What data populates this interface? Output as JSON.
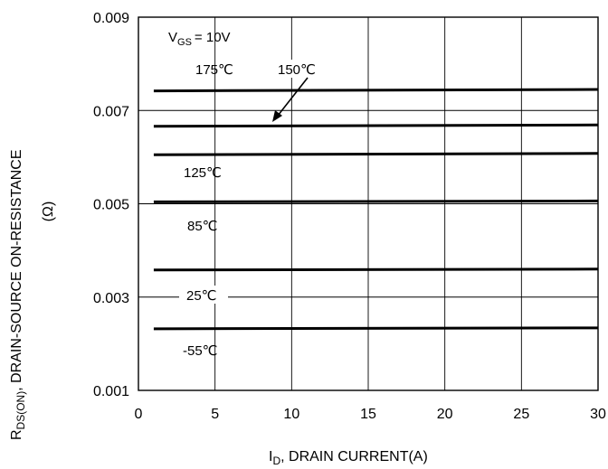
{
  "chart_data": {
    "type": "line",
    "ylabel": "R_DS(ON), DRAIN-SOURCE ON-RESISTANCE (Ω)",
    "ylabel_parts": {
      "r": "R",
      "sub": "DS(ON)",
      "rest": ",   DRAIN-SOURCE ON-RESISTANCE",
      "unit": "(Ω)"
    },
    "xlabel": "I_D, DRAIN CURRENT(A)",
    "xlabel_parts": {
      "i": "I",
      "sub": "D",
      "rest": ", DRAIN CURRENT(A)"
    },
    "xlim": [
      0,
      30
    ],
    "ylim": [
      0.001,
      0.009
    ],
    "xticks": [
      "0",
      "5",
      "10",
      "15",
      "20",
      "25",
      "30"
    ],
    "yticks": [
      "0.009",
      "0.007",
      "0.005",
      "0.003",
      "0.001"
    ],
    "grid": true,
    "condition": {
      "v": "V",
      "sub": "GS",
      "rest": "= 10V"
    },
    "series": [
      {
        "name": "175℃",
        "x": [
          1,
          30
        ],
        "y": [
          0.00742,
          0.00745
        ]
      },
      {
        "name": "150℃",
        "x": [
          1,
          30
        ],
        "y": [
          0.00666,
          0.00669
        ]
      },
      {
        "name": "125℃",
        "x": [
          1,
          30
        ],
        "y": [
          0.00605,
          0.00608
        ]
      },
      {
        "name": "85℃",
        "x": [
          1,
          30
        ],
        "y": [
          0.00504,
          0.00506
        ]
      },
      {
        "name": "25℃",
        "x": [
          1,
          30
        ],
        "y": [
          0.00358,
          0.0036
        ]
      },
      {
        "name": "-55℃",
        "x": [
          1,
          30
        ],
        "y": [
          0.00232,
          0.00234
        ]
      }
    ],
    "annotations": [
      "175℃",
      "150℃",
      "125℃",
      "85℃",
      "25℃",
      "-55℃"
    ]
  }
}
